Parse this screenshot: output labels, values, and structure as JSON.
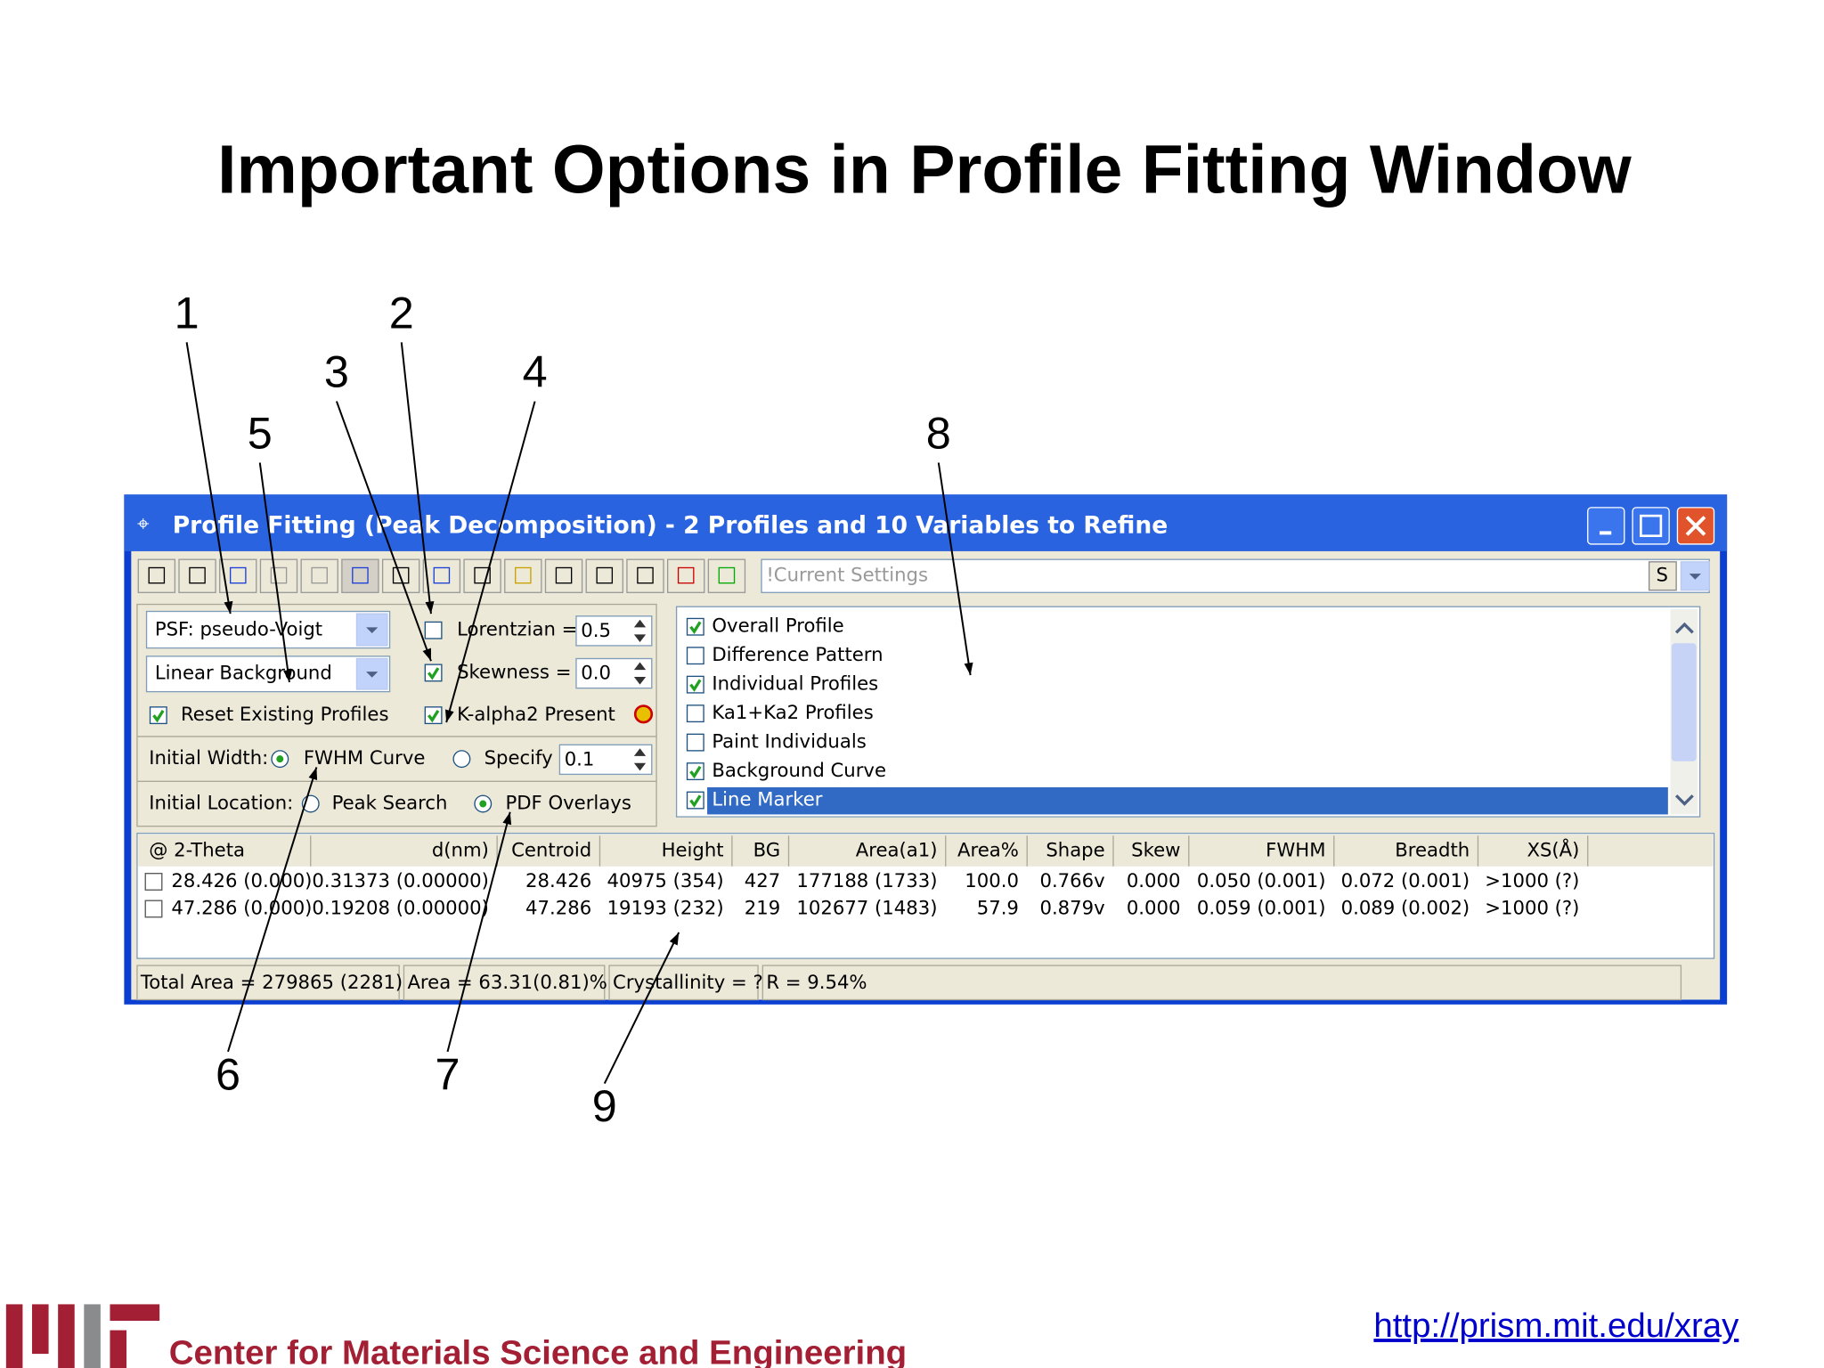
{
  "slide": {
    "title": "Important Options in Profile Fitting Window",
    "footer": "Center for Materials Science and Engineering",
    "url": "http://prism.mit.edu/xray",
    "callouts": [
      "1",
      "2",
      "3",
      "4",
      "5",
      "6",
      "7",
      "8",
      "9"
    ]
  },
  "window": {
    "title": "Profile Fitting (Peak Decomposition) - 2 Profiles and 10 Variables to Refine",
    "toolbar": {
      "settings": "!Current Settings",
      "s_button": "S"
    },
    "psf": "PSF: pseudo-Voigt",
    "background": "Linear Background",
    "reset": {
      "label": "Reset Existing Profiles",
      "checked": true
    },
    "lorentzian": {
      "label": "Lorentzian =",
      "value": "0.5",
      "checked": false
    },
    "skewness": {
      "label": "Skewness =",
      "value": "0.0",
      "checked": true
    },
    "kalpha2": {
      "label": "K-alpha2 Present",
      "checked": true
    },
    "initial_width": {
      "label": "Initial Width:",
      "options": [
        "FWHM Curve",
        "Specify"
      ],
      "selected": 0,
      "value": "0.1"
    },
    "initial_location": {
      "label": "Initial Location:",
      "options": [
        "Peak Search",
        "PDF Overlays"
      ],
      "selected": 1
    },
    "display_options": [
      {
        "label": "Overall Profile",
        "checked": true
      },
      {
        "label": "Difference Pattern",
        "checked": false
      },
      {
        "label": "Individual Profiles",
        "checked": true
      },
      {
        "label": "Ka1+Ka2 Profiles",
        "checked": false
      },
      {
        "label": "Paint Individuals",
        "checked": false
      },
      {
        "label": "Background Curve",
        "checked": true
      },
      {
        "label": "Line Marker",
        "checked": true
      }
    ],
    "selected_option": 6,
    "table": {
      "columns": [
        "@ 2-Theta",
        "d(nm)",
        "Centroid",
        "Height",
        "BG",
        "Area(a1)",
        "Area%",
        "Shape",
        "Skew",
        "FWHM",
        "Breadth",
        "XS(Å)"
      ],
      "rows": [
        [
          "28.426 (0.000)",
          "0.31373 (0.00000)",
          "28.426",
          "40975 (354)",
          "427",
          "177188 (1733)",
          "100.0",
          "0.766v",
          "0.000",
          "0.050 (0.001)",
          "0.072 (0.001)",
          ">1000 (?)"
        ],
        [
          "47.286 (0.000)",
          "0.19208 (0.00000)",
          "47.286",
          "19193 (232)",
          "219",
          "102677 (1483)",
          "57.9",
          "0.879v",
          "0.000",
          "0.059 (0.001)",
          "0.089 (0.002)",
          ">1000 (?)"
        ]
      ]
    },
    "status": [
      "Total Area = 279865 (2281)",
      "Area = 63.31(0.81)%",
      "Crystallinity = ?",
      "R = 9.54%"
    ]
  }
}
